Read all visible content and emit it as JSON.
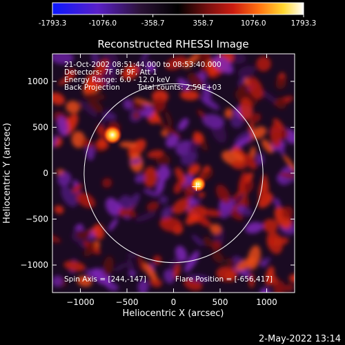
{
  "colorbar": {
    "ticks": [
      "-1793.3",
      "-1076.0",
      "-358.7",
      "358.7",
      "1076.0",
      "1793.3"
    ],
    "tick_values": [
      -1793.3,
      -1076.0,
      -358.7,
      358.7,
      1076.0,
      1793.3
    ],
    "range": [
      -1793.3,
      1793.3
    ],
    "colors": [
      "#0b18ff",
      "#5a20c8",
      "#2b1236",
      "#000000",
      "#7a0f0f",
      "#cc1c10",
      "#ff7010",
      "#ffd830",
      "#ffffff"
    ]
  },
  "chart_data": {
    "type": "heatmap",
    "title": "Reconstructed RHESSI Image",
    "xlabel": "Heliocentric X (arcsec)",
    "ylabel": "Heliocentric Y (arcsec)",
    "xlim": [
      -1300,
      1300
    ],
    "ylim": [
      -1300,
      1300
    ],
    "xticks": [
      -1000,
      -500,
      0,
      500,
      1000
    ],
    "yticks": [
      -1000,
      -500,
      0,
      500,
      1000
    ],
    "xtick_labels": [
      "−1000",
      "−500",
      "0",
      "500",
      "1000"
    ],
    "ytick_labels": [
      "−1000",
      "−500",
      "0",
      "500",
      "1000"
    ],
    "solar_disk": {
      "center": [
        0,
        0
      ],
      "radius": 960
    },
    "bright_sources": [
      {
        "x": -656,
        "y": 417,
        "intensity": 1793.3
      },
      {
        "x": 265,
        "y": -120,
        "intensity": 1300
      }
    ],
    "annotations": [
      "21-Oct-2002 08:51:44.000 to 08:53:40.000",
      "Detectors: 7F 8F 9F, Att 1",
      "Energy Range: 6.0 - 12.0 keV",
      "Back Projection",
      "Total counts: 2.59E+03"
    ],
    "footer_left": "Spin Axis = [244,-147]",
    "footer_right": "Flare Position = [-656,417]",
    "spin_axis": [
      244,
      -147
    ],
    "flare_position": [
      -656,
      417
    ]
  },
  "timestamp": "2-May-2022 13:14",
  "colors": {
    "disk": "#ffffff",
    "background": "#000000"
  }
}
